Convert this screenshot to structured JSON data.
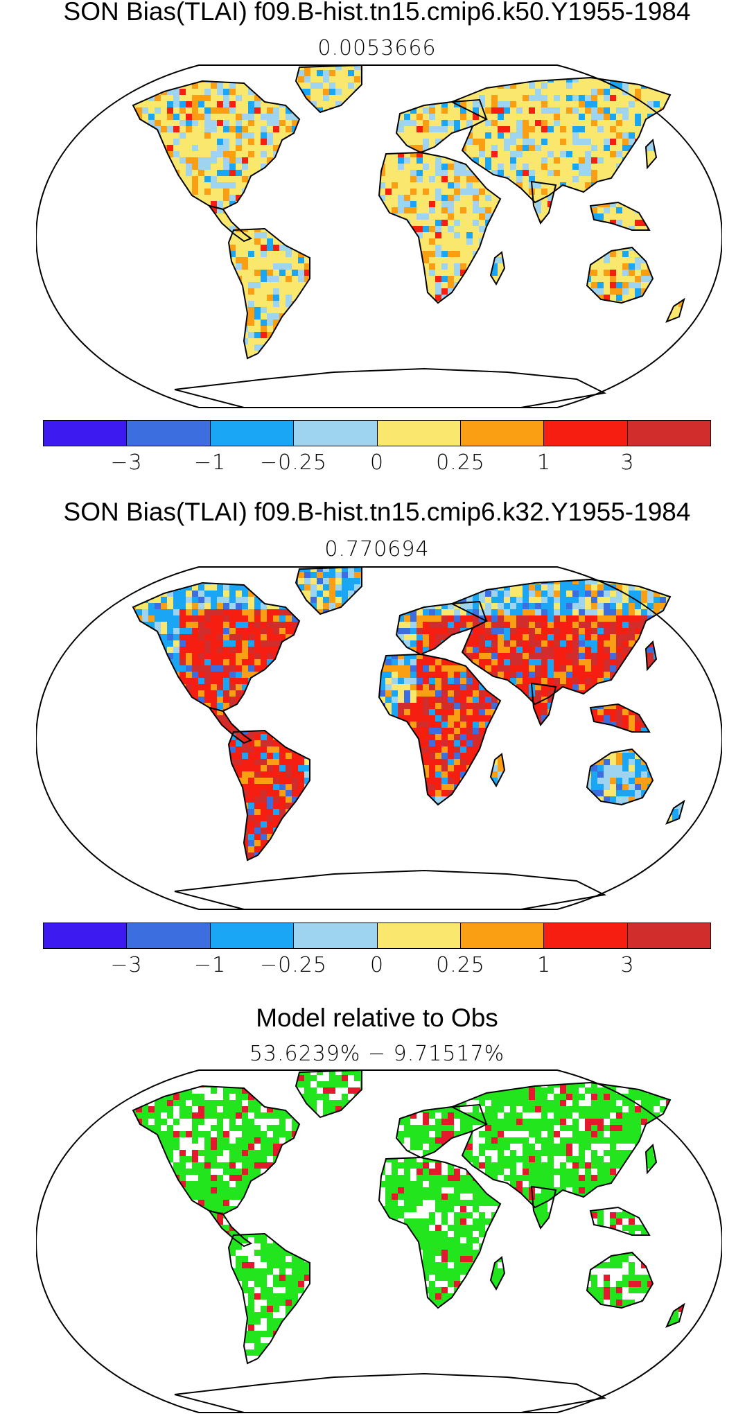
{
  "panels": [
    {
      "title": "SON Bias(TLAI) f09.B-hist.tn15.cmip6.k50.Y1955-1984",
      "subtitle": "0.0053666"
    },
    {
      "title": "SON Bias(TLAI) f09.B-hist.tn15.cmip6.k32.Y1955-1984",
      "subtitle": "0.770694"
    },
    {
      "title": "Model relative to Obs",
      "subtitle": "53.6239% − 9.71517%"
    }
  ],
  "colorbar": {
    "colors": [
      "#3c1af0",
      "#3c6ee0",
      "#1aa6f5",
      "#9fd4f0",
      "#fae86e",
      "#fa9e14",
      "#f51e10",
      "#d22d2d"
    ],
    "ticks": [
      "−3",
      "−1",
      "−0.25",
      "0",
      "0.25",
      "1",
      "3"
    ]
  },
  "colors": {
    "land_line": "#000000",
    "good": "#22e51e",
    "bad": "#e5192d"
  }
}
